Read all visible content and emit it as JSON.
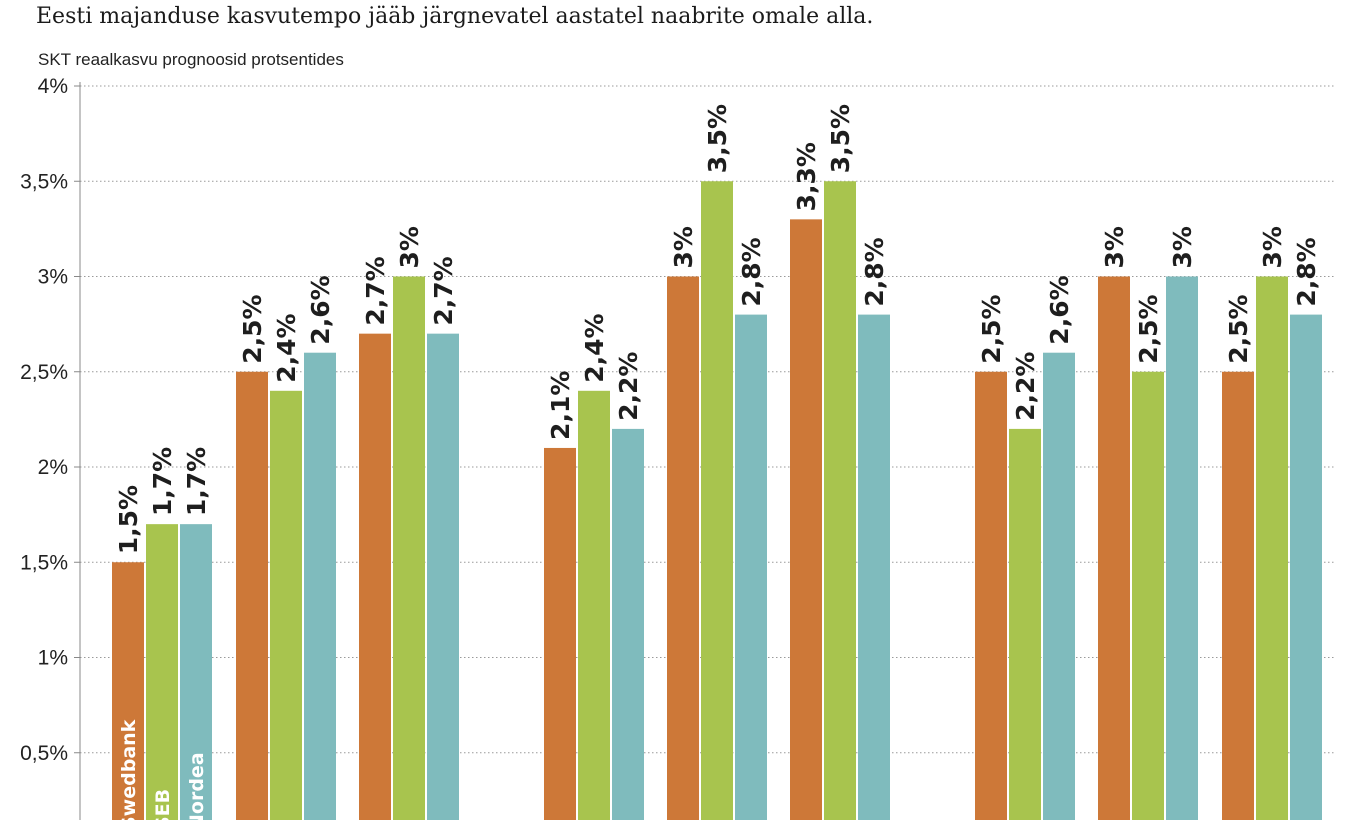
{
  "header": {
    "subtitle": "Eesti majanduse kasvutempo jääb järgnevatel aastatel naabrite omale alla.",
    "unit_label": "SKT reaalkasvu prognoosid protsentides"
  },
  "colors": {
    "Swedbank": "#cd7838",
    "SEB": "#a8c44e",
    "Nordea": "#7fbbbd",
    "grid": "#9a9a9a"
  },
  "chart_data": {
    "type": "bar",
    "title": "",
    "ylabel": "SKT reaalkasvu prognoosid protsentides",
    "ylim": [
      0,
      4
    ],
    "yticks": [
      {
        "value": 0.5,
        "label": "0,5%"
      },
      {
        "value": 1,
        "label": "1%"
      },
      {
        "value": 1.5,
        "label": "1,5%"
      },
      {
        "value": 2,
        "label": "2%"
      },
      {
        "value": 2.5,
        "label": "2,5%"
      },
      {
        "value": 3,
        "label": "3%"
      },
      {
        "value": 3.5,
        "label": "3,5%"
      },
      {
        "value": 4,
        "label": "4%"
      }
    ],
    "grid": true,
    "legend": "inside first bars, vertical text",
    "series_names": [
      "Swedbank",
      "SEB",
      "Nordea"
    ],
    "groups": [
      [
        {
          "values": [
            1.5,
            1.7,
            1.7
          ],
          "labels": [
            "1,5%",
            "1,7%",
            "1,7%"
          ]
        },
        {
          "values": [
            2.5,
            2.4,
            2.6
          ],
          "labels": [
            "2,5%",
            "2,4%",
            "2,6%"
          ]
        },
        {
          "values": [
            2.7,
            3.0,
            2.7
          ],
          "labels": [
            "2,7%",
            "3%",
            "2,7%"
          ]
        }
      ],
      [
        {
          "values": [
            2.1,
            2.4,
            2.2
          ],
          "labels": [
            "2,1%",
            "2,4%",
            "2,2%"
          ]
        },
        {
          "values": [
            3.0,
            3.5,
            2.8
          ],
          "labels": [
            "3%",
            "3,5%",
            "2,8%"
          ]
        },
        {
          "values": [
            3.3,
            3.5,
            2.8
          ],
          "labels": [
            "3,3%",
            "3,5%",
            "2,8%"
          ]
        }
      ],
      [
        {
          "values": [
            2.5,
            2.2,
            2.6
          ],
          "labels": [
            "2,5%",
            "2,2%",
            "2,6%"
          ]
        },
        {
          "values": [
            3.0,
            2.5,
            3.0
          ],
          "labels": [
            "3%",
            "2,5%",
            "3%"
          ]
        },
        {
          "values": [
            2.5,
            3.0,
            2.8
          ],
          "labels": [
            "2,5%",
            "3%",
            "2,8%"
          ]
        }
      ]
    ]
  }
}
